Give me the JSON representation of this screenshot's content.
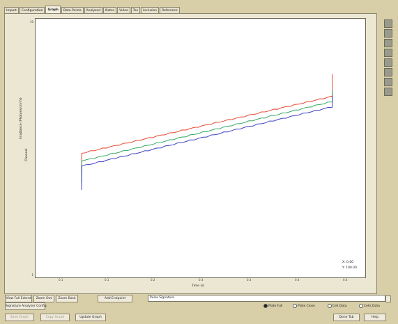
{
  "tabs": [
    {
      "label": "Import"
    },
    {
      "label": "Configuration"
    },
    {
      "label": "Graph"
    },
    {
      "label": "Data Points"
    },
    {
      "label": "Analyzed"
    },
    {
      "label": "Notes"
    },
    {
      "label": "Video"
    },
    {
      "label": "Tex"
    },
    {
      "label": "Inclusion"
    },
    {
      "label": "Reference"
    }
  ],
  "active_tab": "Graph",
  "chart": {
    "ylabel": "Irradiance (Photons/cm²/s)",
    "ylabel2": "Channel",
    "xlabel": "Time (s)",
    "yticks": [
      "10",
      "",
      "",
      "",
      "",
      "",
      "1"
    ],
    "xticks": [
      "0.1",
      "0.1",
      "0.2",
      "0.3",
      "0.3",
      "0.4",
      "0.4",
      "0.5"
    ],
    "readout_x": "X: 0.00",
    "readout_y": "Y: 100.00",
    "series_colors": [
      "#e8452e",
      "#2ea860",
      "#3a3fc2"
    ]
  },
  "chart_data": {
    "type": "line",
    "title": "",
    "xlabel": "Time (s)",
    "ylabel": "Irradiance (Photons/cm²/s)",
    "x": [
      0.12,
      0.5
    ],
    "series": [
      {
        "values": [
          4.8,
          7.0
        ]
      },
      {
        "values": [
          4.5,
          6.8
        ]
      },
      {
        "values": [
          4.3,
          6.6
        ]
      }
    ],
    "grid": false
  },
  "controls": {
    "row1": {
      "view_full_extent": "View Full Extent",
      "zoom_out": "Zoom Out",
      "zoom_back": "Zoom Back",
      "add_endpoint": "Add Endpoint",
      "signature_value": "Pulse Signature"
    },
    "row2": {
      "signature_analyzer": "Signature Analyzer Config",
      "radios": [
        {
          "label": "Plate Full",
          "checked": true
        },
        {
          "label": "Plate Close",
          "checked": false
        },
        {
          "label": "Cell Data",
          "checked": false
        },
        {
          "label": "Cells Data",
          "checked": false
        }
      ]
    },
    "row3": {
      "save_graph": "Save Graph",
      "copy_graph": "Copy Graph",
      "update_graph": "Update Graph",
      "close": "Done Tab",
      "help": "Help"
    }
  }
}
